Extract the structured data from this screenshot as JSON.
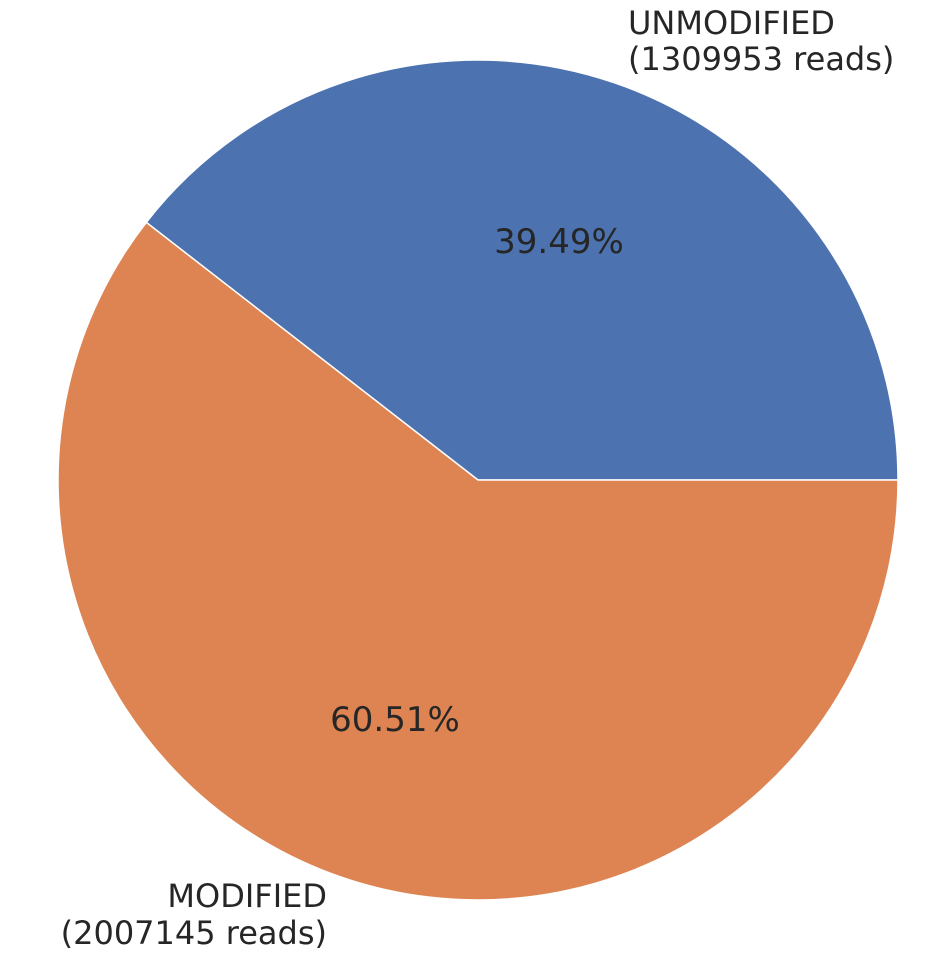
{
  "chart_data": {
    "type": "pie",
    "title": "",
    "slices": [
      {
        "label": "UNMODIFIED",
        "count_label": "(1309953 reads)",
        "value": 1309953,
        "percent_label": "39.49%",
        "color": "#4c72b0"
      },
      {
        "label": "MODIFIED",
        "count_label": "(2007145 reads)",
        "value": 2007145,
        "percent_label": "60.51%",
        "color": "#dd8452"
      }
    ],
    "start_angle_deg": 0,
    "direction": "counterclockwise",
    "legend": false
  }
}
